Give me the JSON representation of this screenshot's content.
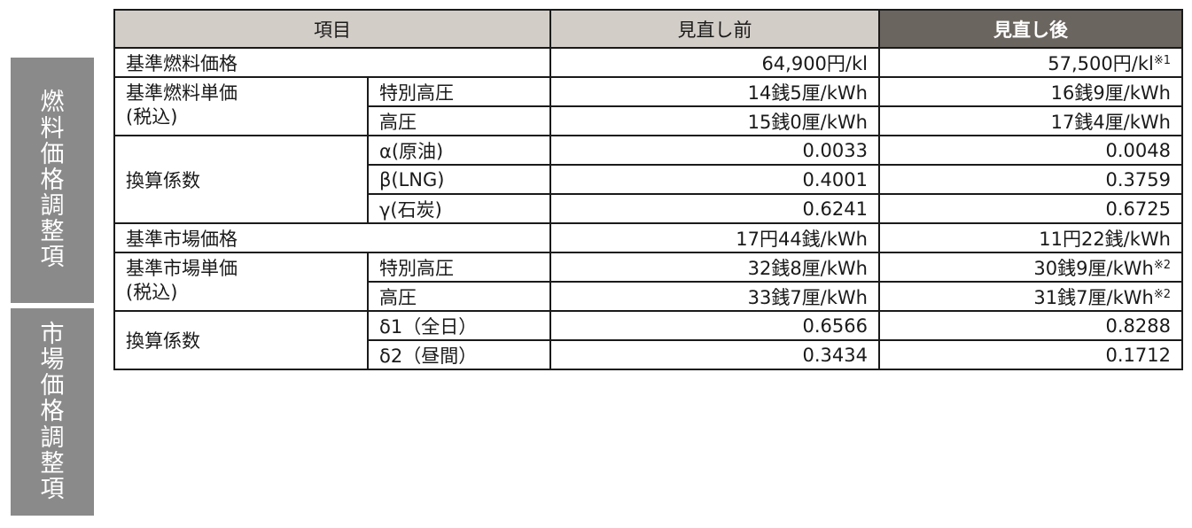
{
  "side_labels": {
    "fuel": [
      "燃",
      "料",
      "価",
      "格",
      "調",
      "整",
      "項"
    ],
    "market": [
      "市",
      "場",
      "価",
      "格",
      "調",
      "整",
      "項"
    ]
  },
  "header": {
    "item": "項目",
    "before": "見直し前",
    "after": "見直し後"
  },
  "rows": {
    "fuel_price": {
      "label": "基準燃料価格",
      "before": "64,900円/kl",
      "after": "57,500円/kl",
      "after_note": "※1"
    },
    "fuel_unit": {
      "label_line1": "基準燃料単価",
      "label_line2": "(税込)",
      "extra_high": {
        "label": "特別高圧",
        "before": "14銭5厘/kWh",
        "after": "16銭9厘/kWh"
      },
      "high": {
        "label": "高圧",
        "before": "15銭0厘/kWh",
        "after": "17銭4厘/kWh"
      }
    },
    "fuel_coef": {
      "label": "換算係数",
      "alpha": {
        "label": "α(原油)",
        "before": "0.0033",
        "after": "0.0048"
      },
      "beta": {
        "label": "β(LNG)",
        "before": "0.4001",
        "after": "0.3759"
      },
      "gamma": {
        "label": "γ(石炭)",
        "before": "0.6241",
        "after": "0.6725"
      }
    },
    "market_price": {
      "label": "基準市場価格",
      "before": "17円44銭/kWh",
      "after": "11円22銭/kWh"
    },
    "market_unit": {
      "label_line1": "基準市場単価",
      "label_line2": "(税込)",
      "extra_high": {
        "label": "特別高圧",
        "before": "32銭8厘/kWh",
        "after": "30銭9厘/kWh",
        "after_note": "※2"
      },
      "high": {
        "label": "高圧",
        "before": "33銭7厘/kWh",
        "after": "31銭7厘/kWh",
        "after_note": "※2"
      }
    },
    "market_coef": {
      "label": "換算係数",
      "delta1": {
        "label": "δ1（全日）",
        "before": "0.6566",
        "after": "0.8288"
      },
      "delta2": {
        "label": "δ2（昼間）",
        "before": "0.3434",
        "after": "0.1712"
      }
    }
  },
  "colors": {
    "side_bg": "#8a8a8a",
    "header_bg": "#d2cdc7",
    "header_after_bg": "#6b655f",
    "border": "#1a1a1a"
  }
}
